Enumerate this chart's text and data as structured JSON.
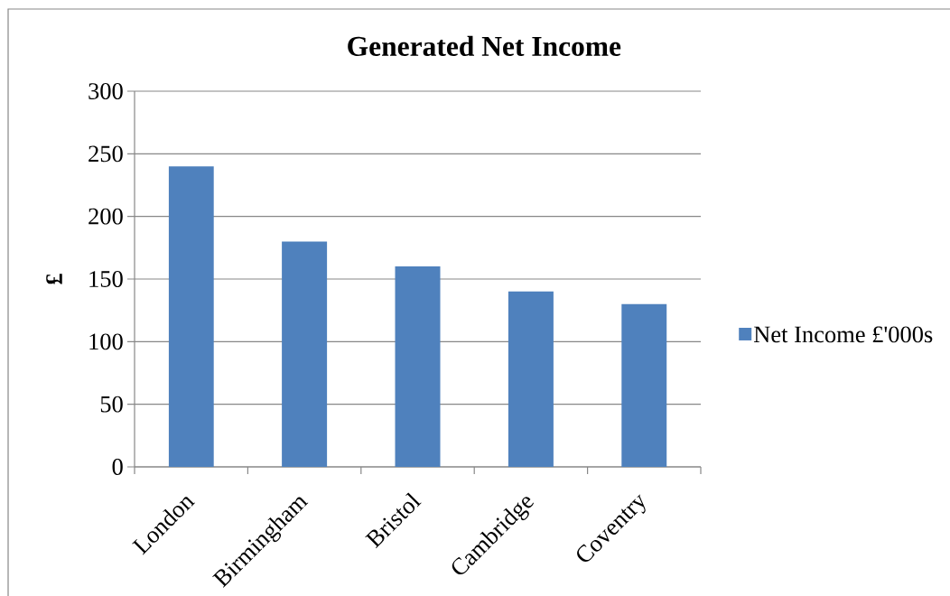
{
  "chart_data": {
    "type": "bar",
    "title": "Generated Net Income",
    "ylabel": "£",
    "categories": [
      "London",
      "Birmingham",
      "Bristol",
      "Cambridge",
      "Coventry"
    ],
    "series": [
      {
        "name": "Net Income £'000s",
        "color": "#4f81bd",
        "values": [
          240,
          180,
          160,
          140,
          130
        ]
      }
    ],
    "ylim": [
      0,
      300
    ],
    "yticks": [
      0,
      50,
      100,
      150,
      200,
      250,
      300
    ],
    "grid": "y",
    "legend": "right"
  }
}
